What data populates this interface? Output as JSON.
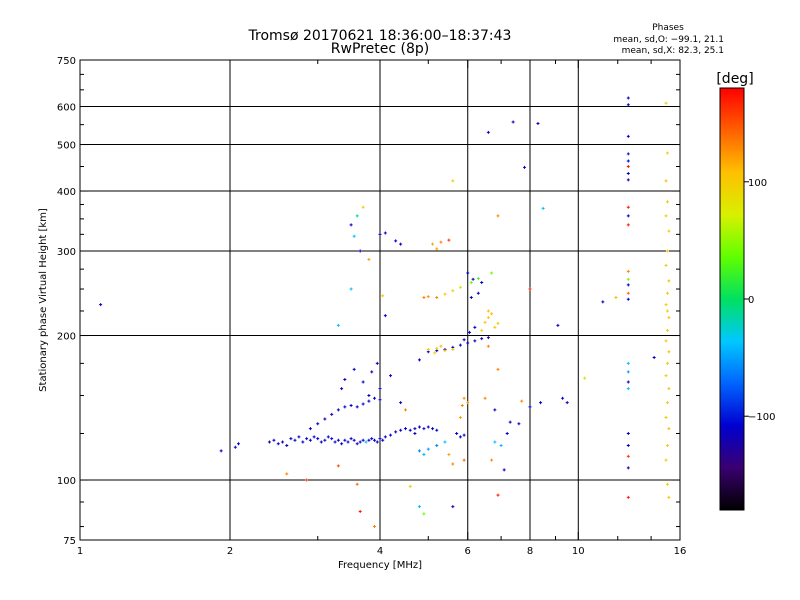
{
  "chart_data": {
    "type": "scatter",
    "title": "Tromsø 20170621 18:36:00–18:37:43",
    "subtitle": "RwPretec (8p)",
    "info": {
      "heading": "Phases",
      "line_o": "mean, sd,O: −99.1, 21.1",
      "line_x": "mean, sd,X:  82.3, 25.1"
    },
    "xlabel": "Frequency [MHz]",
    "ylabel": "Stationary phase Virtual Height [km]",
    "x_scale": "log",
    "y_scale": "log",
    "xlim": [
      1,
      16
    ],
    "ylim": [
      75,
      750
    ],
    "x_ticks": [
      {
        "value": 1,
        "label": "1"
      },
      {
        "value": 2,
        "label": "2"
      },
      {
        "value": 4,
        "label": "4"
      },
      {
        "value": 6,
        "label": "6"
      },
      {
        "value": 8,
        "label": "8"
      },
      {
        "value": 10,
        "label": "10"
      },
      {
        "value": 16,
        "label": "16"
      }
    ],
    "x_grid": [
      2,
      4,
      6,
      8,
      10
    ],
    "y_ticks": [
      {
        "value": 75,
        "label": "75"
      },
      {
        "value": 100,
        "label": "100"
      },
      {
        "value": 200,
        "label": "200"
      },
      {
        "value": 300,
        "label": "300"
      },
      {
        "value": 400,
        "label": "400"
      },
      {
        "value": 500,
        "label": "500"
      },
      {
        "value": 600,
        "label": "600"
      },
      {
        "value": 750,
        "label": "750"
      }
    ],
    "y_grid": [
      100,
      200,
      300,
      400,
      500,
      600
    ],
    "grid": true,
    "colorbar": {
      "label": "[deg]",
      "range": [
        -180,
        180
      ],
      "ticks": [
        {
          "value": 100,
          "label": "100"
        },
        {
          "value": 0,
          "label": "0"
        },
        {
          "value": -100,
          "label": "−100"
        }
      ],
      "colors": [
        "#000000",
        "#3a0070",
        "#0000d0",
        "#0064ff",
        "#00c8ff",
        "#00e060",
        "#60ff00",
        "#d8f000",
        "#ffc000",
        "#ff6000",
        "#ff0000"
      ]
    },
    "points": [
      {
        "x": 1.1,
        "y": 232,
        "p": -110
      },
      {
        "x": 1.92,
        "y": 115,
        "p": -110
      },
      {
        "x": 2.05,
        "y": 117,
        "p": -105
      },
      {
        "x": 2.08,
        "y": 119,
        "p": -112
      },
      {
        "x": 2.4,
        "y": 120,
        "p": -110
      },
      {
        "x": 2.45,
        "y": 121,
        "p": -115
      },
      {
        "x": 2.5,
        "y": 119,
        "p": -108
      },
      {
        "x": 2.55,
        "y": 120,
        "p": -110
      },
      {
        "x": 2.6,
        "y": 118,
        "p": -112
      },
      {
        "x": 2.65,
        "y": 122,
        "p": -108
      },
      {
        "x": 2.7,
        "y": 121,
        "p": -110
      },
      {
        "x": 2.75,
        "y": 123,
        "p": -115
      },
      {
        "x": 2.8,
        "y": 120,
        "p": -110
      },
      {
        "x": 2.85,
        "y": 122,
        "p": -105
      },
      {
        "x": 2.9,
        "y": 121,
        "p": -112
      },
      {
        "x": 2.95,
        "y": 123,
        "p": -110
      },
      {
        "x": 3.0,
        "y": 122,
        "p": -108
      },
      {
        "x": 3.05,
        "y": 120,
        "p": -110
      },
      {
        "x": 3.1,
        "y": 121,
        "p": -115
      },
      {
        "x": 3.15,
        "y": 123,
        "p": -110
      },
      {
        "x": 3.2,
        "y": 122,
        "p": -105
      },
      {
        "x": 3.25,
        "y": 120,
        "p": -110
      },
      {
        "x": 3.3,
        "y": 121,
        "p": -112
      },
      {
        "x": 3.35,
        "y": 119,
        "p": -110
      },
      {
        "x": 3.4,
        "y": 121,
        "p": -108
      },
      {
        "x": 3.45,
        "y": 120,
        "p": -110
      },
      {
        "x": 3.5,
        "y": 122,
        "p": -112
      },
      {
        "x": 3.55,
        "y": 121,
        "p": -110
      },
      {
        "x": 3.6,
        "y": 119,
        "p": -105
      },
      {
        "x": 3.65,
        "y": 120,
        "p": -110
      },
      {
        "x": 3.7,
        "y": 121,
        "p": -112
      },
      {
        "x": 3.75,
        "y": 120,
        "p": -40
      },
      {
        "x": 3.8,
        "y": 121,
        "p": -110
      },
      {
        "x": 3.85,
        "y": 122,
        "p": -110
      },
      {
        "x": 3.9,
        "y": 121,
        "p": -112
      },
      {
        "x": 3.95,
        "y": 120,
        "p": -110
      },
      {
        "x": 4.0,
        "y": 122,
        "p": -108
      },
      {
        "x": 4.05,
        "y": 121,
        "p": -110
      },
      {
        "x": 4.1,
        "y": 123,
        "p": -112
      },
      {
        "x": 4.2,
        "y": 124,
        "p": -110
      },
      {
        "x": 4.3,
        "y": 126,
        "p": -108
      },
      {
        "x": 4.4,
        "y": 127,
        "p": -110
      },
      {
        "x": 4.5,
        "y": 128,
        "p": -112
      },
      {
        "x": 4.6,
        "y": 127,
        "p": -110
      },
      {
        "x": 4.7,
        "y": 128,
        "p": -108
      },
      {
        "x": 4.8,
        "y": 129,
        "p": -110
      },
      {
        "x": 4.9,
        "y": 128,
        "p": -105
      },
      {
        "x": 5.0,
        "y": 129,
        "p": -110
      },
      {
        "x": 5.1,
        "y": 128,
        "p": -112
      },
      {
        "x": 5.2,
        "y": 127,
        "p": -110
      },
      {
        "x": 2.9,
        "y": 128,
        "p": -110
      },
      {
        "x": 3.0,
        "y": 131,
        "p": -108
      },
      {
        "x": 3.1,
        "y": 134,
        "p": -110
      },
      {
        "x": 3.2,
        "y": 137,
        "p": -112
      },
      {
        "x": 3.3,
        "y": 140,
        "p": -110
      },
      {
        "x": 3.4,
        "y": 142,
        "p": -108
      },
      {
        "x": 3.5,
        "y": 143,
        "p": -110
      },
      {
        "x": 3.6,
        "y": 142,
        "p": -112
      },
      {
        "x": 3.7,
        "y": 144,
        "p": -110
      },
      {
        "x": 3.8,
        "y": 146,
        "p": -108
      },
      {
        "x": 3.9,
        "y": 148,
        "p": -110
      },
      {
        "x": 4.0,
        "y": 147,
        "p": -112
      },
      {
        "x": 3.35,
        "y": 155,
        "p": -110
      },
      {
        "x": 3.4,
        "y": 162,
        "p": -108
      },
      {
        "x": 3.55,
        "y": 170,
        "p": -110
      },
      {
        "x": 3.7,
        "y": 160,
        "p": -112
      },
      {
        "x": 3.8,
        "y": 150,
        "p": -110
      },
      {
        "x": 4.0,
        "y": 155,
        "p": -105
      },
      {
        "x": 4.7,
        "y": 125,
        "p": -110
      },
      {
        "x": 4.8,
        "y": 115,
        "p": -60
      },
      {
        "x": 4.9,
        "y": 113,
        "p": -40
      },
      {
        "x": 5.0,
        "y": 116,
        "p": -50
      },
      {
        "x": 5.2,
        "y": 118,
        "p": -60
      },
      {
        "x": 5.4,
        "y": 120,
        "p": -40
      },
      {
        "x": 5.5,
        "y": 113,
        "p": 120
      },
      {
        "x": 5.6,
        "y": 108,
        "p": 130
      },
      {
        "x": 5.9,
        "y": 110,
        "p": 140
      },
      {
        "x": 5.7,
        "y": 125,
        "p": -110
      },
      {
        "x": 5.8,
        "y": 123,
        "p": -110
      },
      {
        "x": 5.9,
        "y": 124,
        "p": -108
      },
      {
        "x": 5.8,
        "y": 135,
        "p": 120
      },
      {
        "x": 5.85,
        "y": 143,
        "p": 130
      },
      {
        "x": 5.9,
        "y": 148,
        "p": 125
      },
      {
        "x": 6.0,
        "y": 145,
        "p": 120
      },
      {
        "x": 3.95,
        "y": 175,
        "p": -110
      },
      {
        "x": 3.85,
        "y": 168,
        "p": -112
      },
      {
        "x": 4.8,
        "y": 178,
        "p": -110
      },
      {
        "x": 5.0,
        "y": 185,
        "p": -120
      },
      {
        "x": 5.2,
        "y": 186,
        "p": -115
      },
      {
        "x": 5.4,
        "y": 187,
        "p": -110
      },
      {
        "x": 5.6,
        "y": 189,
        "p": -120
      },
      {
        "x": 5.8,
        "y": 191,
        "p": -115
      },
      {
        "x": 6.0,
        "y": 193,
        "p": -110
      },
      {
        "x": 6.2,
        "y": 195,
        "p": -115
      },
      {
        "x": 6.4,
        "y": 197,
        "p": -120
      },
      {
        "x": 6.6,
        "y": 198,
        "p": -130
      },
      {
        "x": 5.9,
        "y": 196,
        "p": -115
      },
      {
        "x": 6.05,
        "y": 203,
        "p": -110
      },
      {
        "x": 6.2,
        "y": 208,
        "p": -115
      },
      {
        "x": 5.0,
        "y": 187,
        "p": 100
      },
      {
        "x": 5.2,
        "y": 188,
        "p": 105
      },
      {
        "x": 5.4,
        "y": 186,
        "p": 110
      },
      {
        "x": 5.6,
        "y": 187,
        "p": 100
      },
      {
        "x": 5.3,
        "y": 190,
        "p": 105
      },
      {
        "x": 5.15,
        "y": 184,
        "p": 95
      },
      {
        "x": 6.5,
        "y": 213,
        "p": 100
      },
      {
        "x": 6.6,
        "y": 218,
        "p": 105
      },
      {
        "x": 6.7,
        "y": 222,
        "p": 110
      },
      {
        "x": 6.8,
        "y": 208,
        "p": 100
      },
      {
        "x": 6.4,
        "y": 205,
        "p": 95
      },
      {
        "x": 6.9,
        "y": 212,
        "p": 100
      },
      {
        "x": 6.6,
        "y": 225,
        "p": 110
      },
      {
        "x": 4.9,
        "y": 240,
        "p": 130
      },
      {
        "x": 5.0,
        "y": 241,
        "p": 125
      },
      {
        "x": 5.2,
        "y": 240,
        "p": 130
      },
      {
        "x": 5.4,
        "y": 244,
        "p": 100
      },
      {
        "x": 5.6,
        "y": 248,
        "p": 95
      },
      {
        "x": 5.8,
        "y": 252,
        "p": 80
      },
      {
        "x": 6.1,
        "y": 258,
        "p": 40
      },
      {
        "x": 6.3,
        "y": 263,
        "p": 30
      },
      {
        "x": 6.0,
        "y": 270,
        "p": -110
      },
      {
        "x": 6.15,
        "y": 262,
        "p": -115
      },
      {
        "x": 6.4,
        "y": 258,
        "p": -110
      },
      {
        "x": 6.3,
        "y": 245,
        "p": -112
      },
      {
        "x": 6.1,
        "y": 240,
        "p": -110
      },
      {
        "x": 6.7,
        "y": 270,
        "p": 40
      },
      {
        "x": 3.5,
        "y": 340,
        "p": -110
      },
      {
        "x": 3.6,
        "y": 355,
        "p": -10
      },
      {
        "x": 3.55,
        "y": 322,
        "p": -40
      },
      {
        "x": 3.65,
        "y": 300,
        "p": -112
      },
      {
        "x": 3.5,
        "y": 250,
        "p": -40
      },
      {
        "x": 3.7,
        "y": 370,
        "p": 100
      },
      {
        "x": 4.0,
        "y": 325,
        "p": -110
      },
      {
        "x": 4.1,
        "y": 327,
        "p": -112
      },
      {
        "x": 4.3,
        "y": 315,
        "p": -110
      },
      {
        "x": 4.4,
        "y": 310,
        "p": -112
      },
      {
        "x": 5.1,
        "y": 310,
        "p": 120
      },
      {
        "x": 5.3,
        "y": 313,
        "p": 130
      },
      {
        "x": 5.5,
        "y": 316,
        "p": 160
      },
      {
        "x": 5.2,
        "y": 303,
        "p": 120
      },
      {
        "x": 5.6,
        "y": 420,
        "p": 100
      },
      {
        "x": 6.9,
        "y": 355,
        "p": 130
      },
      {
        "x": 6.6,
        "y": 530,
        "p": -110
      },
      {
        "x": 7.4,
        "y": 557,
        "p": -112
      },
      {
        "x": 7.8,
        "y": 448,
        "p": -110
      },
      {
        "x": 8.3,
        "y": 553,
        "p": -110
      },
      {
        "x": 8.5,
        "y": 368,
        "p": -40
      },
      {
        "x": 9.1,
        "y": 210,
        "p": -110
      },
      {
        "x": 11.2,
        "y": 235,
        "p": -110
      },
      {
        "x": 11.9,
        "y": 240,
        "p": 110
      },
      {
        "x": 10.3,
        "y": 163,
        "p": 60
      },
      {
        "x": 8.0,
        "y": 250,
        "p": 170
      },
      {
        "x": 8.0,
        "y": 142,
        "p": -112
      },
      {
        "x": 8.4,
        "y": 145,
        "p": -110
      },
      {
        "x": 9.3,
        "y": 148,
        "p": -110
      },
      {
        "x": 9.5,
        "y": 145,
        "p": -112
      },
      {
        "x": 7.3,
        "y": 132,
        "p": -110
      },
      {
        "x": 7.6,
        "y": 131,
        "p": -108
      },
      {
        "x": 7.7,
        "y": 146,
        "p": 130
      },
      {
        "x": 6.8,
        "y": 140,
        "p": -110
      },
      {
        "x": 7.2,
        "y": 125,
        "p": -110
      },
      {
        "x": 7.0,
        "y": 118,
        "p": -40
      },
      {
        "x": 6.8,
        "y": 120,
        "p": -40
      },
      {
        "x": 6.6,
        "y": 190,
        "p": 130
      },
      {
        "x": 6.9,
        "y": 170,
        "p": 130
      },
      {
        "x": 6.5,
        "y": 148,
        "p": 130
      },
      {
        "x": 6.7,
        "y": 110,
        "p": 130
      },
      {
        "x": 7.1,
        "y": 105,
        "p": -110
      },
      {
        "x": 6.9,
        "y": 93,
        "p": 170
      },
      {
        "x": 4.6,
        "y": 97,
        "p": 100
      },
      {
        "x": 4.8,
        "y": 88,
        "p": -40
      },
      {
        "x": 4.9,
        "y": 85,
        "p": 40
      },
      {
        "x": 5.6,
        "y": 88,
        "p": -110
      },
      {
        "x": 3.9,
        "y": 80,
        "p": 130
      },
      {
        "x": 3.65,
        "y": 86,
        "p": 170
      },
      {
        "x": 3.6,
        "y": 98,
        "p": 140
      },
      {
        "x": 3.3,
        "y": 107,
        "p": 150
      },
      {
        "x": 2.85,
        "y": 100,
        "p": 160
      },
      {
        "x": 2.6,
        "y": 103,
        "p": 130
      },
      {
        "x": 4.2,
        "y": 165,
        "p": -110
      },
      {
        "x": 4.4,
        "y": 145,
        "p": -112
      },
      {
        "x": 4.5,
        "y": 140,
        "p": 130
      },
      {
        "x": 3.3,
        "y": 210,
        "p": -40
      },
      {
        "x": 4.1,
        "y": 220,
        "p": -110
      },
      {
        "x": 4.05,
        "y": 242,
        "p": 100
      },
      {
        "x": 3.8,
        "y": 288,
        "p": 120
      },
      {
        "x": 12.6,
        "y": 625,
        "p": -110
      },
      {
        "x": 12.6,
        "y": 605,
        "p": -112
      },
      {
        "x": 12.6,
        "y": 520,
        "p": -110
      },
      {
        "x": 12.6,
        "y": 478,
        "p": -100
      },
      {
        "x": 12.6,
        "y": 462,
        "p": -110
      },
      {
        "x": 12.6,
        "y": 450,
        "p": 170
      },
      {
        "x": 12.6,
        "y": 435,
        "p": -110
      },
      {
        "x": 12.6,
        "y": 422,
        "p": -112
      },
      {
        "x": 12.6,
        "y": 370,
        "p": 170
      },
      {
        "x": 12.6,
        "y": 355,
        "p": -110
      },
      {
        "x": 12.6,
        "y": 340,
        "p": 170
      },
      {
        "x": 12.6,
        "y": 272,
        "p": 130
      },
      {
        "x": 12.6,
        "y": 262,
        "p": 40
      },
      {
        "x": 12.6,
        "y": 255,
        "p": -110
      },
      {
        "x": 12.6,
        "y": 245,
        "p": 140
      },
      {
        "x": 12.6,
        "y": 238,
        "p": -112
      },
      {
        "x": 12.6,
        "y": 175,
        "p": -40
      },
      {
        "x": 12.6,
        "y": 168,
        "p": -50
      },
      {
        "x": 12.6,
        "y": 160,
        "p": -110
      },
      {
        "x": 12.6,
        "y": 155,
        "p": -40
      },
      {
        "x": 12.6,
        "y": 125,
        "p": -110
      },
      {
        "x": 12.6,
        "y": 118,
        "p": -112
      },
      {
        "x": 12.6,
        "y": 112,
        "p": 160
      },
      {
        "x": 12.6,
        "y": 106,
        "p": -110
      },
      {
        "x": 12.6,
        "y": 92,
        "p": 170
      },
      {
        "x": 14.2,
        "y": 180,
        "p": -110
      },
      {
        "x": 15.0,
        "y": 610,
        "p": 100
      },
      {
        "x": 15.1,
        "y": 480,
        "p": 100
      },
      {
        "x": 15.0,
        "y": 420,
        "p": 110
      },
      {
        "x": 15.1,
        "y": 380,
        "p": 100
      },
      {
        "x": 15.0,
        "y": 355,
        "p": 100
      },
      {
        "x": 15.2,
        "y": 330,
        "p": 100
      },
      {
        "x": 15.1,
        "y": 300,
        "p": 105
      },
      {
        "x": 15.0,
        "y": 280,
        "p": 100
      },
      {
        "x": 15.2,
        "y": 260,
        "p": 110
      },
      {
        "x": 15.1,
        "y": 245,
        "p": 100
      },
      {
        "x": 15.0,
        "y": 232,
        "p": 100
      },
      {
        "x": 15.2,
        "y": 218,
        "p": 105
      },
      {
        "x": 15.1,
        "y": 205,
        "p": 100
      },
      {
        "x": 15.0,
        "y": 195,
        "p": 100
      },
      {
        "x": 15.2,
        "y": 185,
        "p": 110
      },
      {
        "x": 15.1,
        "y": 175,
        "p": 100
      },
      {
        "x": 15.0,
        "y": 165,
        "p": 100
      },
      {
        "x": 15.2,
        "y": 155,
        "p": 105
      },
      {
        "x": 15.1,
        "y": 145,
        "p": 100
      },
      {
        "x": 15.0,
        "y": 135,
        "p": 100
      },
      {
        "x": 15.2,
        "y": 128,
        "p": 110
      },
      {
        "x": 15.1,
        "y": 118,
        "p": 100
      },
      {
        "x": 15.0,
        "y": 110,
        "p": 100
      },
      {
        "x": 15.1,
        "y": 98,
        "p": 100
      },
      {
        "x": 15.2,
        "y": 92,
        "p": 105
      },
      {
        "x": 15.1,
        "y": 225,
        "p": 100
      }
    ]
  }
}
